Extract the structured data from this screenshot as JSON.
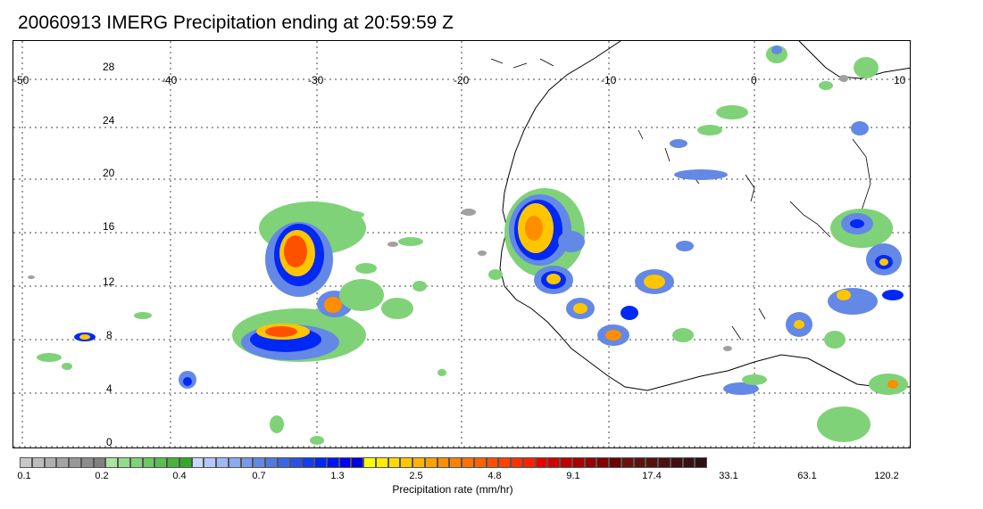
{
  "title": "20060913 IMERG Precipitation ending at 20:59:59 Z",
  "lon_ticks": [
    "-50",
    "-40",
    "-30",
    "-20",
    "-10",
    "0",
    "10"
  ],
  "lat_ticks": [
    "28",
    "24",
    "20",
    "16",
    "12",
    "8",
    "4",
    "0"
  ],
  "colorbar": {
    "title": "Precipitation rate (mm/hr)",
    "labels": [
      "0.1",
      "0.2",
      "0.4",
      "0.7",
      "1.3",
      "2.5",
      "4.8",
      "9.1",
      "17.4",
      "33.1",
      "63.1",
      "120.2"
    ],
    "colors": [
      "#c8c8c8",
      "#bcbcbc",
      "#b0b0b0",
      "#a4a4a4",
      "#989898",
      "#8c8c8c",
      "#808080",
      "#a8e6a0",
      "#94dc8c",
      "#80d278",
      "#6cc864",
      "#58be50",
      "#44b43c",
      "#30aa28",
      "#c8d8ff",
      "#b4c8fa",
      "#a0b8f5",
      "#8ca8f0",
      "#7898eb",
      "#6488e6",
      "#5078e1",
      "#3c64e6",
      "#2850eb",
      "#143cf0",
      "#0028f5",
      "#0014fa",
      "#0000ff",
      "#0000dc",
      "#ffff00",
      "#ffec00",
      "#ffd900",
      "#ffc600",
      "#ffb300",
      "#ffa000",
      "#ff8d00",
      "#ff8000",
      "#ff7000",
      "#ff6000",
      "#ff5000",
      "#ff4000",
      "#ff3000",
      "#ff2000",
      "#e60000",
      "#d20000",
      "#be0000",
      "#aa0000",
      "#960000",
      "#820000",
      "#6e0000",
      "#6a1010",
      "#601010",
      "#561010",
      "#4c1010",
      "#421010",
      "#381010",
      "#2e1010"
    ]
  },
  "rain_colors": {
    "light": "#80d278",
    "moderate": "#6488e6",
    "heavy": "#0028f5",
    "intense": "#ffc600",
    "extreme": "#ff5000",
    "edge": "#a0a0a0"
  }
}
